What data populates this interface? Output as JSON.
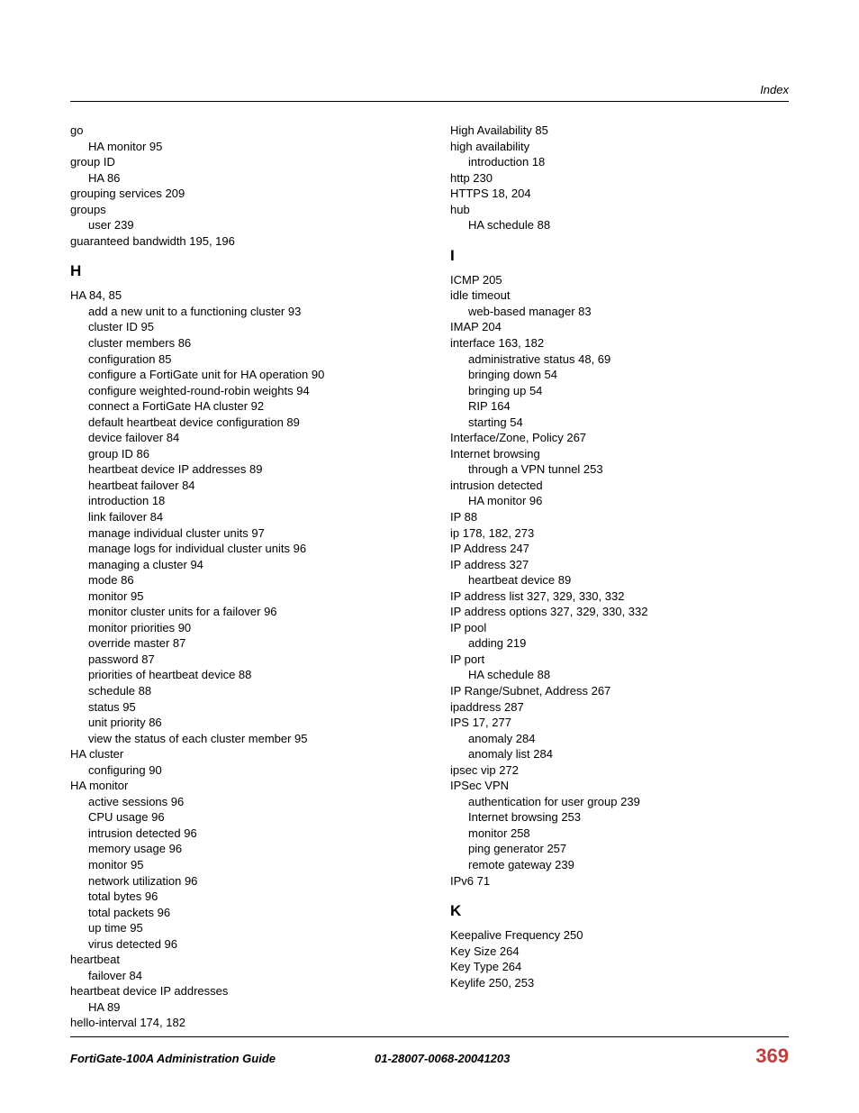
{
  "header": {
    "section": "Index"
  },
  "columns": {
    "left": [
      {
        "t": "entry",
        "text": "go"
      },
      {
        "t": "sub",
        "text": "HA monitor 95"
      },
      {
        "t": "entry",
        "text": "group ID"
      },
      {
        "t": "sub",
        "text": "HA 86"
      },
      {
        "t": "entry",
        "text": "grouping services 209"
      },
      {
        "t": "entry",
        "text": "groups"
      },
      {
        "t": "sub",
        "text": "user 239"
      },
      {
        "t": "entry",
        "text": "guaranteed bandwidth 195, 196"
      },
      {
        "t": "letter",
        "text": "H"
      },
      {
        "t": "entry",
        "text": "HA 84, 85"
      },
      {
        "t": "sub",
        "text": "add a new unit to a functioning cluster 93"
      },
      {
        "t": "sub",
        "text": "cluster ID 95"
      },
      {
        "t": "sub",
        "text": "cluster members 86"
      },
      {
        "t": "sub",
        "text": "configuration 85"
      },
      {
        "t": "sub",
        "text": "configure a FortiGate unit for HA operation 90"
      },
      {
        "t": "sub",
        "text": "configure weighted-round-robin weights 94"
      },
      {
        "t": "sub",
        "text": "connect a FortiGate HA cluster 92"
      },
      {
        "t": "sub",
        "text": "default heartbeat device configuration 89"
      },
      {
        "t": "sub",
        "text": "device failover 84"
      },
      {
        "t": "sub",
        "text": "group ID 86"
      },
      {
        "t": "sub",
        "text": "heartbeat device IP addresses 89"
      },
      {
        "t": "sub",
        "text": "heartbeat failover 84"
      },
      {
        "t": "sub",
        "text": "introduction 18"
      },
      {
        "t": "sub",
        "text": "link failover 84"
      },
      {
        "t": "sub",
        "text": "manage individual cluster units 97"
      },
      {
        "t": "sub",
        "text": "manage logs for individual cluster units 96"
      },
      {
        "t": "sub",
        "text": "managing a cluster 94"
      },
      {
        "t": "sub",
        "text": "mode 86"
      },
      {
        "t": "sub",
        "text": "monitor 95"
      },
      {
        "t": "sub",
        "text": "monitor cluster units for a failover 96"
      },
      {
        "t": "sub",
        "text": "monitor priorities 90"
      },
      {
        "t": "sub",
        "text": "override master 87"
      },
      {
        "t": "sub",
        "text": "password 87"
      },
      {
        "t": "sub",
        "text": "priorities of heartbeat device 88"
      },
      {
        "t": "sub",
        "text": "schedule 88"
      },
      {
        "t": "sub",
        "text": "status 95"
      },
      {
        "t": "sub",
        "text": "unit priority 86"
      },
      {
        "t": "sub",
        "text": "view the status of each cluster member 95"
      },
      {
        "t": "entry",
        "text": "HA cluster"
      },
      {
        "t": "sub",
        "text": "configuring 90"
      },
      {
        "t": "entry",
        "text": "HA monitor"
      },
      {
        "t": "sub",
        "text": "active sessions 96"
      },
      {
        "t": "sub",
        "text": "CPU usage 96"
      },
      {
        "t": "sub",
        "text": "intrusion detected 96"
      },
      {
        "t": "sub",
        "text": "memory usage 96"
      },
      {
        "t": "sub",
        "text": "monitor 95"
      },
      {
        "t": "sub",
        "text": "network utilization 96"
      },
      {
        "t": "sub",
        "text": "total bytes 96"
      },
      {
        "t": "sub",
        "text": "total packets 96"
      },
      {
        "t": "sub",
        "text": "up time 95"
      },
      {
        "t": "sub",
        "text": "virus detected 96"
      },
      {
        "t": "entry",
        "text": "heartbeat"
      },
      {
        "t": "sub",
        "text": "failover 84"
      },
      {
        "t": "entry",
        "text": "heartbeat device IP addresses"
      },
      {
        "t": "sub",
        "text": "HA 89"
      },
      {
        "t": "entry",
        "text": "hello-interval 174, 182"
      }
    ],
    "right": [
      {
        "t": "entry",
        "text": "High Availability 85"
      },
      {
        "t": "entry",
        "text": "high availability"
      },
      {
        "t": "sub",
        "text": "introduction 18"
      },
      {
        "t": "entry",
        "text": "http 230"
      },
      {
        "t": "entry",
        "text": "HTTPS 18, 204"
      },
      {
        "t": "entry",
        "text": "hub"
      },
      {
        "t": "sub",
        "text": "HA schedule 88"
      },
      {
        "t": "letter",
        "text": "I"
      },
      {
        "t": "entry",
        "text": "ICMP 205"
      },
      {
        "t": "entry",
        "text": "idle timeout"
      },
      {
        "t": "sub",
        "text": "web-based manager 83"
      },
      {
        "t": "entry",
        "text": "IMAP 204"
      },
      {
        "t": "entry",
        "text": "interface 163, 182"
      },
      {
        "t": "sub",
        "text": "administrative status 48, 69"
      },
      {
        "t": "sub",
        "text": "bringing down 54"
      },
      {
        "t": "sub",
        "text": "bringing up 54"
      },
      {
        "t": "sub",
        "text": "RIP 164"
      },
      {
        "t": "sub",
        "text": "starting 54"
      },
      {
        "t": "entry",
        "text": "Interface/Zone, Policy 267"
      },
      {
        "t": "entry",
        "text": "Internet browsing"
      },
      {
        "t": "sub",
        "text": "through a VPN tunnel 253"
      },
      {
        "t": "entry",
        "text": "intrusion detected"
      },
      {
        "t": "sub",
        "text": "HA monitor 96"
      },
      {
        "t": "entry",
        "text": "IP 88"
      },
      {
        "t": "entry",
        "text": "ip 178, 182, 273"
      },
      {
        "t": "entry",
        "text": "IP Address 247"
      },
      {
        "t": "entry",
        "text": "IP address 327"
      },
      {
        "t": "sub",
        "text": "heartbeat device 89"
      },
      {
        "t": "entry",
        "text": "IP address list 327, 329, 330, 332"
      },
      {
        "t": "entry",
        "text": "IP address options 327, 329, 330, 332"
      },
      {
        "t": "entry",
        "text": "IP pool"
      },
      {
        "t": "sub",
        "text": "adding 219"
      },
      {
        "t": "entry",
        "text": "IP port"
      },
      {
        "t": "sub",
        "text": "HA schedule 88"
      },
      {
        "t": "entry",
        "text": "IP Range/Subnet, Address 267"
      },
      {
        "t": "entry",
        "text": "ipaddress 287"
      },
      {
        "t": "entry",
        "text": "IPS 17, 277"
      },
      {
        "t": "sub",
        "text": "anomaly 284"
      },
      {
        "t": "sub",
        "text": "anomaly list 284"
      },
      {
        "t": "entry",
        "text": "ipsec vip 272"
      },
      {
        "t": "entry",
        "text": "IPSec VPN"
      },
      {
        "t": "sub",
        "text": "authentication for user group 239"
      },
      {
        "t": "sub",
        "text": "Internet browsing 253"
      },
      {
        "t": "sub",
        "text": "monitor 258"
      },
      {
        "t": "sub",
        "text": "ping generator 257"
      },
      {
        "t": "sub",
        "text": "remote gateway 239"
      },
      {
        "t": "entry",
        "text": "IPv6 71"
      },
      {
        "t": "letter",
        "text": "K"
      },
      {
        "t": "entry",
        "text": "Keepalive Frequency 250"
      },
      {
        "t": "entry",
        "text": "Key Size 264"
      },
      {
        "t": "entry",
        "text": "Key Type 264"
      },
      {
        "t": "entry",
        "text": "Keylife 250, 253"
      }
    ]
  },
  "footer": {
    "left": "FortiGate-100A Administration Guide",
    "mid": "01-28007-0068-20041203",
    "page": "369"
  },
  "style": {
    "page_color": "#c04040"
  }
}
